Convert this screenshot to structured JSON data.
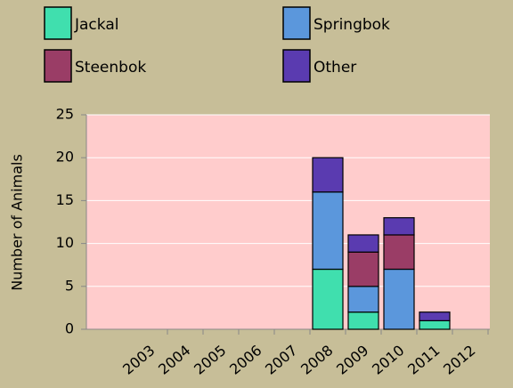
{
  "chart_data": {
    "type": "stacked_bar",
    "y_label": "Number of Animals",
    "categories": [
      "2003",
      "2004",
      "2005",
      "2006",
      "2007",
      "2008",
      "2009",
      "2010",
      "2011",
      "2012"
    ],
    "series": [
      {
        "name": "Jackal",
        "color": "#40dfae",
        "values": [
          0,
          0,
          0,
          0,
          0,
          7,
          2,
          0,
          1,
          0
        ]
      },
      {
        "name": "Springbok",
        "color": "#5b97dc",
        "values": [
          0,
          0,
          0,
          0,
          0,
          9,
          3,
          7,
          0,
          0
        ]
      },
      {
        "name": "Steenbok",
        "color": "#9a3d66",
        "values": [
          0,
          0,
          0,
          0,
          0,
          0,
          4,
          4,
          0,
          0
        ]
      },
      {
        "name": "Other",
        "color": "#5a3bb0",
        "values": [
          0,
          0,
          0,
          0,
          0,
          4,
          2,
          2,
          1,
          0
        ]
      }
    ],
    "ylim": [
      0,
      25
    ],
    "yticks": [
      0,
      5,
      10,
      15,
      20,
      25
    ],
    "grid": true,
    "legend": "top"
  }
}
